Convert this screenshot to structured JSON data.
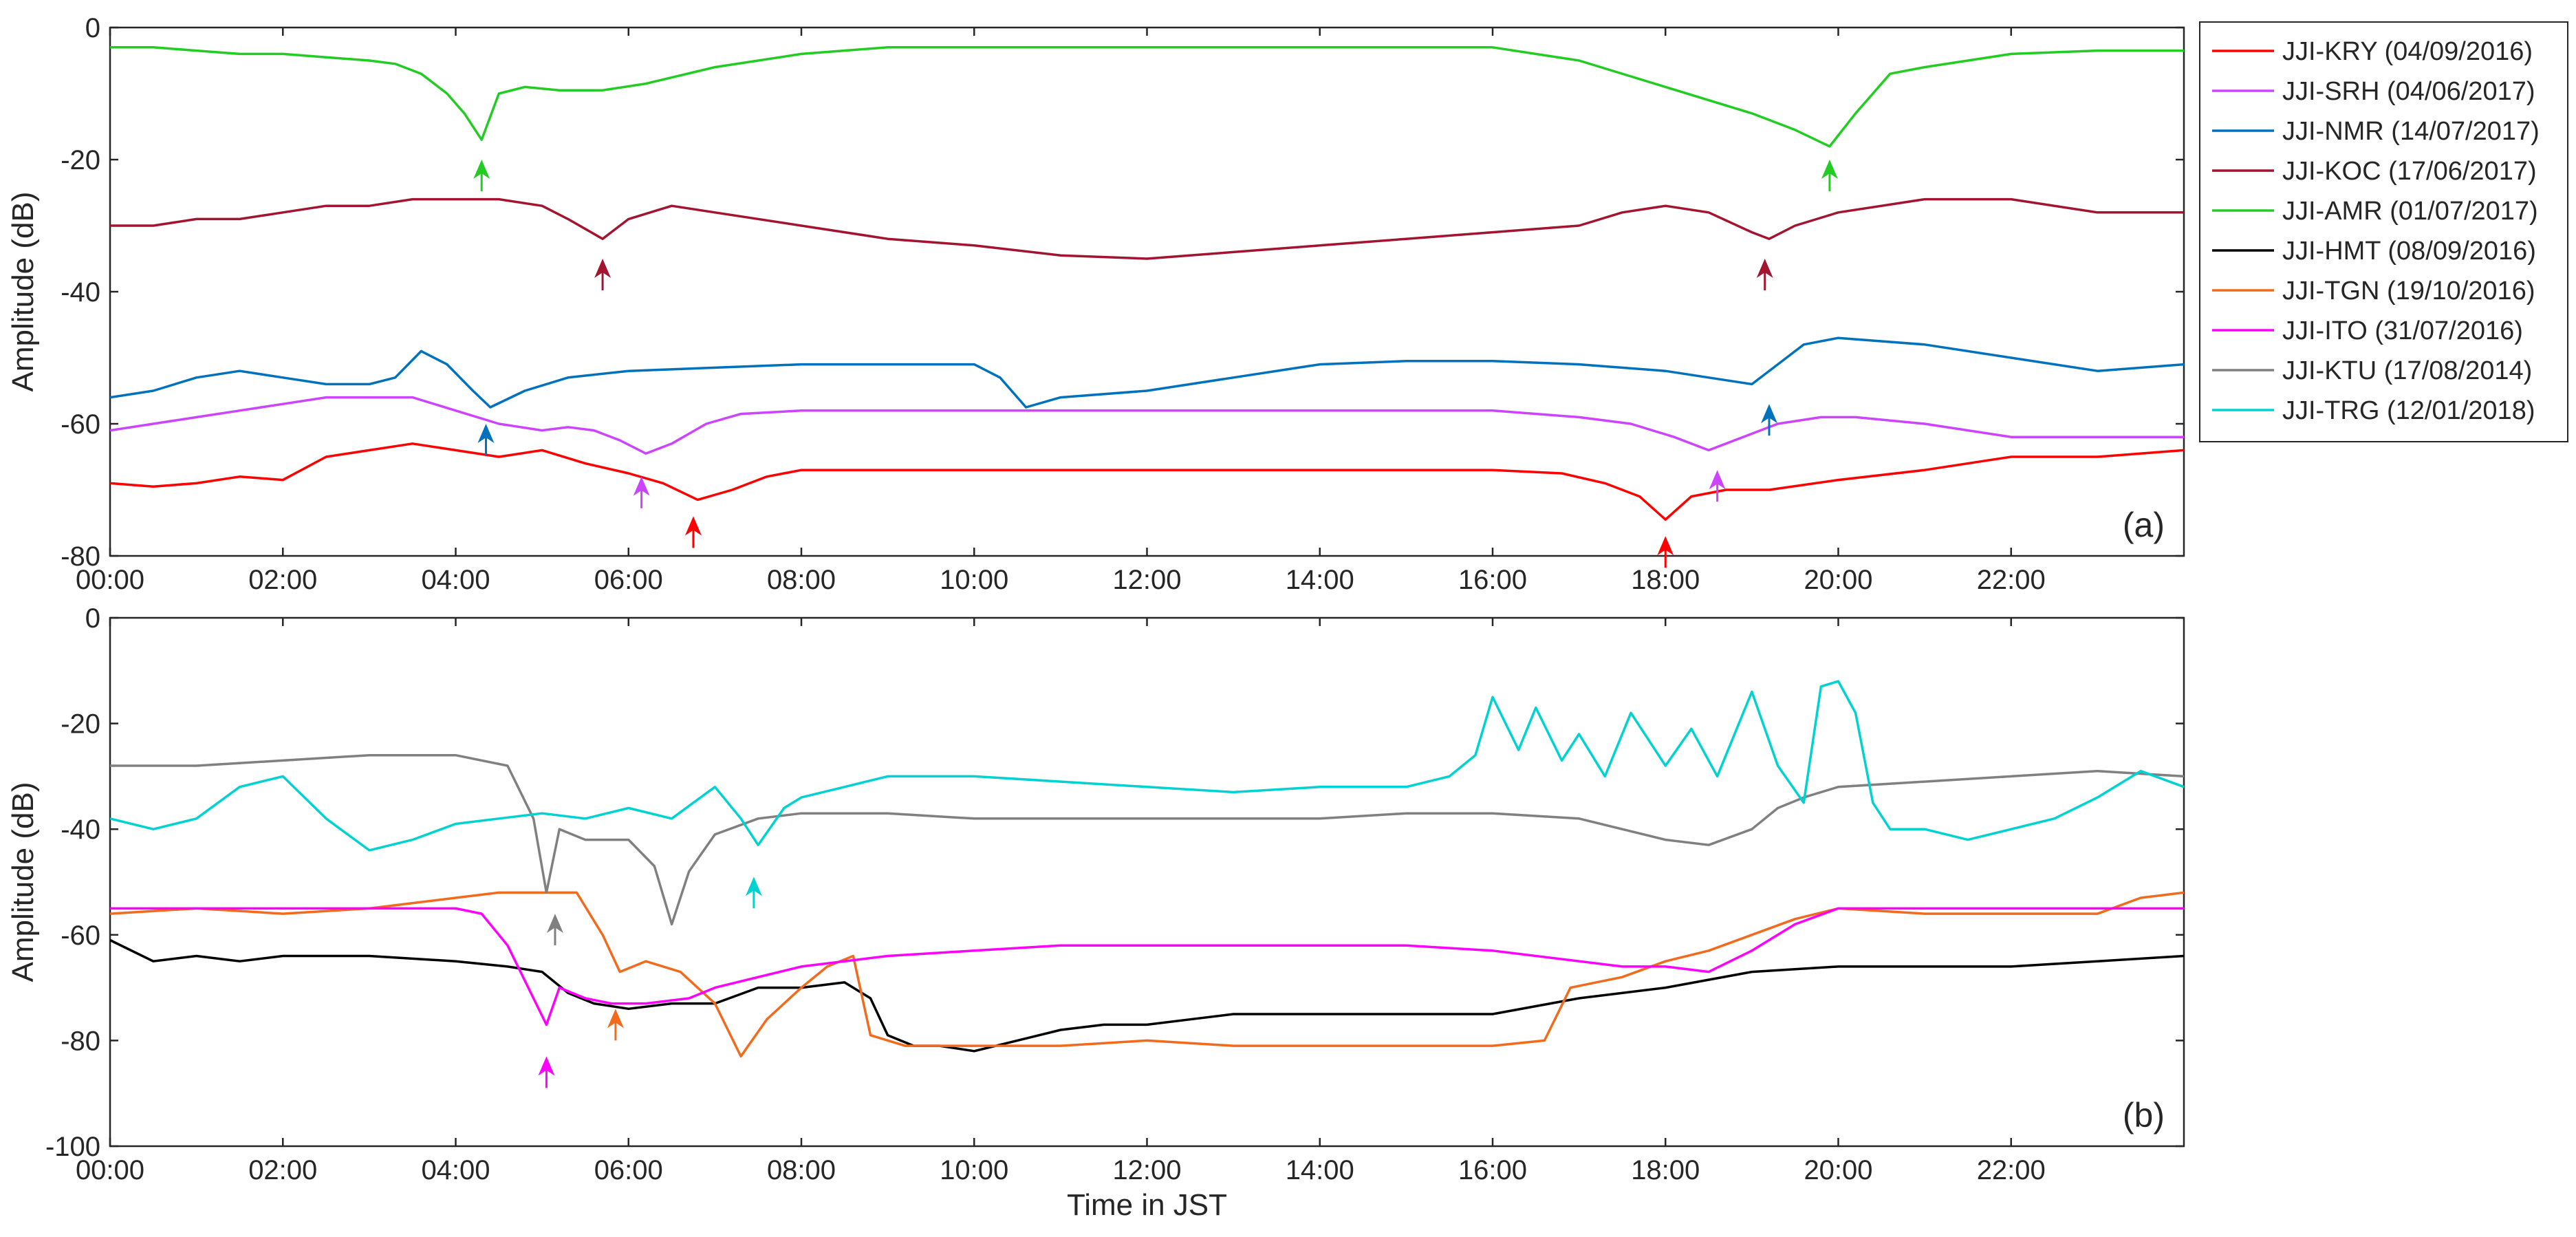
{
  "chart_data": [
    {
      "type": "line",
      "panel_label": "(a)",
      "xlabel": "",
      "ylabel": "Amplitude (dB)",
      "xlim": [
        0,
        24
      ],
      "ylim": [
        -80,
        0
      ],
      "x_ticks": [
        "00:00",
        "02:00",
        "04:00",
        "06:00",
        "08:00",
        "10:00",
        "12:00",
        "14:00",
        "16:00",
        "18:00",
        "20:00",
        "22:00"
      ],
      "y_ticks": [
        "0",
        "-20",
        "-40",
        "-60",
        "-80"
      ],
      "series": [
        {
          "name": "JJI-KRY (04/09/2016)",
          "color": "#ff0000",
          "x": [
            0,
            0.5,
            1,
            1.5,
            2,
            2.5,
            3,
            3.5,
            4,
            4.5,
            5,
            5.5,
            6,
            6.4,
            6.8,
            7.2,
            7.6,
            8,
            9,
            10,
            11,
            12,
            13,
            14,
            15,
            16,
            16.8,
            17.3,
            17.7,
            18,
            18.3,
            18.7,
            19.2,
            20,
            21,
            22,
            23,
            24
          ],
          "y": [
            -69,
            -69.5,
            -69,
            -68,
            -68.5,
            -65,
            -64,
            -63,
            -64,
            -65,
            -64,
            -66,
            -67.5,
            -69,
            -71.5,
            -70,
            -68,
            -67,
            -67,
            -67,
            -67,
            -67,
            -67,
            -67,
            -67,
            -67,
            -67.5,
            -69,
            -71,
            -74.5,
            -71,
            -70,
            -70,
            -68.5,
            -67,
            -65,
            -65,
            -64
          ]
        },
        {
          "name": "JJI-SRH (04/06/2017)",
          "color": "#cc44ff",
          "x": [
            0,
            0.5,
            1,
            1.5,
            2,
            2.5,
            3,
            3.5,
            4,
            4.5,
            5,
            5.3,
            5.6,
            5.9,
            6.2,
            6.5,
            6.9,
            7.3,
            8,
            9,
            10,
            11,
            12,
            13,
            14,
            15,
            16,
            17,
            17.6,
            18.1,
            18.5,
            18.9,
            19.3,
            19.8,
            20.2,
            21,
            22,
            23,
            24
          ],
          "y": [
            -61,
            -60,
            -59,
            -58,
            -57,
            -56,
            -56,
            -56,
            -58,
            -60,
            -61,
            -60.5,
            -61,
            -62.5,
            -64.5,
            -63,
            -60,
            -58.5,
            -58,
            -58,
            -58,
            -58,
            -58,
            -58,
            -58,
            -58,
            -58,
            -59,
            -60,
            -62,
            -64,
            -62,
            -60,
            -59,
            -59,
            -60,
            -62,
            -62,
            -62
          ]
        },
        {
          "name": "JJI-NMR (14/07/2017)",
          "color": "#0072bd",
          "x": [
            0,
            0.5,
            1,
            1.5,
            2,
            2.5,
            3,
            3.3,
            3.6,
            3.9,
            4.2,
            4.4,
            4.8,
            5.3,
            6,
            7,
            8,
            9,
            10,
            10.3,
            10.6,
            11,
            12,
            13,
            14,
            15,
            16,
            17,
            18,
            18.5,
            19,
            19.3,
            19.6,
            20,
            21,
            22,
            23,
            24
          ],
          "y": [
            -56,
            -55,
            -53,
            -52,
            -53,
            -54,
            -54,
            -53,
            -49,
            -51,
            -55,
            -57.5,
            -55,
            -53,
            -52,
            -51.5,
            -51,
            -51,
            -51,
            -53,
            -57.5,
            -56,
            -55,
            -53,
            -51,
            -50.5,
            -50.5,
            -51,
            -52,
            -53,
            -54,
            -51,
            -48,
            -47,
            -48,
            -50,
            -52,
            -51
          ]
        },
        {
          "name": "JJI-KOC (17/06/2017)",
          "color": "#a2142f",
          "x": [
            0,
            0.5,
            1,
            1.5,
            2,
            2.5,
            3,
            3.5,
            4,
            4.5,
            5,
            5.3,
            5.7,
            6,
            6.5,
            7,
            8,
            9,
            10,
            11,
            12,
            13,
            14,
            15,
            16,
            17,
            17.5,
            18,
            18.5,
            19,
            19.2,
            19.5,
            20,
            21,
            22,
            23,
            24
          ],
          "y": [
            -30,
            -30,
            -29,
            -29,
            -28,
            -27,
            -27,
            -26,
            -26,
            -26,
            -27,
            -29,
            -32,
            -29,
            -27,
            -28,
            -30,
            -32,
            -33,
            -34.5,
            -35,
            -34,
            -33,
            -32,
            -31,
            -30,
            -28,
            -27,
            -28,
            -31,
            -32,
            -30,
            -28,
            -26,
            -26,
            -28,
            -28
          ]
        },
        {
          "name": "JJI-AMR (01/07/2017)",
          "color": "#22cc22",
          "x": [
            0,
            0.5,
            1,
            1.5,
            2,
            2.5,
            3,
            3.3,
            3.6,
            3.9,
            4.1,
            4.3,
            4.5,
            4.8,
            5.2,
            5.7,
            6.2,
            7,
            8,
            9,
            10,
            11,
            12,
            13,
            14,
            15,
            16,
            17,
            18,
            19,
            19.5,
            19.9,
            20.2,
            20.4,
            20.6,
            21,
            22,
            23,
            24
          ],
          "y": [
            -3,
            -3,
            -3.5,
            -4,
            -4,
            -4.5,
            -5,
            -5.5,
            -7,
            -10,
            -13,
            -17,
            -10,
            -9,
            -9.5,
            -9.5,
            -8.5,
            -6,
            -4,
            -3,
            -3,
            -3,
            -3,
            -3,
            -3,
            -3,
            -3,
            -5,
            -9,
            -13,
            -15.5,
            -18,
            -13,
            -10,
            -7,
            -6,
            -4,
            -3.5,
            -3.5
          ]
        }
      ],
      "arrows": [
        {
          "x": 6.75,
          "y": -74,
          "color": "#ff0000"
        },
        {
          "x": 18.0,
          "y": -77,
          "color": "#ff0000"
        },
        {
          "x": 6.15,
          "y": -68,
          "color": "#cc44ff"
        },
        {
          "x": 18.6,
          "y": -67,
          "color": "#cc44ff"
        },
        {
          "x": 4.35,
          "y": -60,
          "color": "#0072bd"
        },
        {
          "x": 19.2,
          "y": -57,
          "color": "#0072bd"
        },
        {
          "x": 5.7,
          "y": -35,
          "color": "#a2142f"
        },
        {
          "x": 19.15,
          "y": -35,
          "color": "#a2142f"
        },
        {
          "x": 4.3,
          "y": -20,
          "color": "#22cc22"
        },
        {
          "x": 19.9,
          "y": -20,
          "color": "#22cc22"
        }
      ]
    },
    {
      "type": "line",
      "panel_label": "(b)",
      "xlabel": "Time in JST",
      "ylabel": "Amplitude (dB)",
      "xlim": [
        0,
        24
      ],
      "ylim": [
        -100,
        0
      ],
      "x_ticks": [
        "00:00",
        "02:00",
        "04:00",
        "06:00",
        "08:00",
        "10:00",
        "12:00",
        "14:00",
        "16:00",
        "18:00",
        "20:00",
        "22:00"
      ],
      "y_ticks": [
        "0",
        "-20",
        "-40",
        "-60",
        "-80",
        "-100"
      ],
      "series": [
        {
          "name": "JJI-HMT (08/09/2016)",
          "color": "#000000",
          "x": [
            0,
            0.5,
            1,
            1.5,
            2,
            3,
            4,
            4.6,
            5,
            5.3,
            5.6,
            6,
            6.5,
            7,
            7.5,
            8,
            8.5,
            8.8,
            9,
            9.3,
            9.6,
            10,
            10.5,
            11,
            11.5,
            12,
            12.5,
            13,
            14,
            15,
            16,
            17,
            18,
            19,
            20,
            21,
            22,
            23,
            24
          ],
          "y": [
            -61,
            -65,
            -64,
            -65,
            -64,
            -64,
            -65,
            -66,
            -67,
            -71,
            -73,
            -74,
            -73,
            -73,
            -70,
            -70,
            -69,
            -72,
            -79,
            -81,
            -81,
            -82,
            -80,
            -78,
            -77,
            -77,
            -76,
            -75,
            -75,
            -75,
            -75,
            -72,
            -70,
            -67,
            -66,
            -66,
            -66,
            -65,
            -64
          ]
        },
        {
          "name": "JJI-TGN (19/10/2016)",
          "color": "#f26b1d",
          "x": [
            0,
            1,
            2,
            3,
            4,
            4.5,
            5,
            5.4,
            5.7,
            5.9,
            6.2,
            6.6,
            7,
            7.3,
            7.6,
            8,
            8.3,
            8.6,
            8.8,
            9.2,
            10,
            11,
            12,
            13,
            14,
            15,
            16,
            16.6,
            16.9,
            17.5,
            18,
            18.5,
            19,
            19.5,
            20,
            21,
            22,
            23,
            23.5,
            24
          ],
          "y": [
            -56,
            -55,
            -56,
            -55,
            -53,
            -52,
            -52,
            -52,
            -60,
            -67,
            -65,
            -67,
            -73,
            -83,
            -76,
            -70,
            -66,
            -64,
            -79,
            -81,
            -81,
            -81,
            -80,
            -81,
            -81,
            -81,
            -81,
            -80,
            -70,
            -68,
            -65,
            -63,
            -60,
            -57,
            -55,
            -56,
            -56,
            -56,
            -53,
            -52
          ]
        },
        {
          "name": "JJI-ITO (31/07/2016)",
          "color": "#ff00ff",
          "x": [
            0,
            1,
            2,
            3,
            4,
            4.3,
            4.6,
            4.9,
            5.05,
            5.2,
            5.5,
            5.8,
            6.2,
            6.7,
            7,
            7.5,
            8,
            9,
            10,
            11,
            12,
            13,
            14,
            15,
            16,
            17,
            17.5,
            18,
            18.5,
            19,
            19.5,
            20,
            21,
            22,
            23,
            24
          ],
          "y": [
            -55,
            -55,
            -55,
            -55,
            -55,
            -56,
            -62,
            -72,
            -77,
            -70,
            -72,
            -73,
            -73,
            -72,
            -70,
            -68,
            -66,
            -64,
            -63,
            -62,
            -62,
            -62,
            -62,
            -62,
            -63,
            -65,
            -66,
            -66,
            -67,
            -63,
            -58,
            -55,
            -55,
            -55,
            -55,
            -55
          ]
        },
        {
          "name": "JJI-KTU (17/08/2014)",
          "color": "#808080",
          "x": [
            0,
            1,
            2,
            3,
            4,
            4.6,
            4.9,
            5.05,
            5.2,
            5.5,
            6,
            6.3,
            6.5,
            6.7,
            7,
            7.5,
            8,
            9,
            10,
            11,
            12,
            13,
            14,
            15,
            16,
            17,
            18,
            18.5,
            19,
            19.3,
            19.6,
            20,
            21,
            22,
            23,
            24
          ],
          "y": [
            -28,
            -28,
            -27,
            -26,
            -26,
            -28,
            -38,
            -52,
            -40,
            -42,
            -42,
            -47,
            -58,
            -48,
            -41,
            -38,
            -37,
            -37,
            -38,
            -38,
            -38,
            -38,
            -38,
            -37,
            -37,
            -38,
            -42,
            -43,
            -40,
            -36,
            -34,
            -32,
            -31,
            -30,
            -29,
            -30
          ]
        },
        {
          "name": "JJI-TRG (12/01/2018)",
          "color": "#00d2d2",
          "x": [
            0,
            0.5,
            1,
            1.5,
            2,
            2.5,
            3,
            3.5,
            4,
            4.5,
            5,
            5.5,
            6,
            6.5,
            7,
            7.3,
            7.5,
            7.8,
            8,
            8.5,
            9,
            10,
            11,
            12,
            13,
            14,
            15,
            15.5,
            15.8,
            16,
            16.3,
            16.5,
            16.8,
            17,
            17.3,
            17.6,
            18,
            18.3,
            18.6,
            19,
            19.3,
            19.6,
            19.8,
            20,
            20.2,
            20.4,
            20.6,
            21,
            21.5,
            22,
            22.5,
            23,
            23.5,
            24
          ],
          "y": [
            -38,
            -40,
            -38,
            -32,
            -30,
            -38,
            -44,
            -42,
            -39,
            -38,
            -37,
            -38,
            -36,
            -38,
            -32,
            -38,
            -43,
            -36,
            -34,
            -32,
            -30,
            -30,
            -31,
            -32,
            -33,
            -32,
            -32,
            -30,
            -26,
            -15,
            -25,
            -17,
            -27,
            -22,
            -30,
            -18,
            -28,
            -21,
            -30,
            -14,
            -28,
            -35,
            -13,
            -12,
            -18,
            -35,
            -40,
            -40,
            -42,
            -40,
            -38,
            -34,
            -29,
            -32
          ]
        }
      ],
      "arrows": [
        {
          "x": 5.05,
          "y": -83,
          "color": "#ff00ff"
        },
        {
          "x": 5.85,
          "y": -74,
          "color": "#f26b1d"
        },
        {
          "x": 5.15,
          "y": -56,
          "color": "#808080"
        },
        {
          "x": 7.45,
          "y": -49,
          "color": "#00d2d2"
        }
      ]
    }
  ],
  "legend": [
    {
      "label": "JJI-KRY (04/09/2016)",
      "color": "#ff0000"
    },
    {
      "label": "JJI-SRH (04/06/2017)",
      "color": "#cc44ff"
    },
    {
      "label": "JJI-NMR (14/07/2017)",
      "color": "#0072bd"
    },
    {
      "label": "JJI-KOC (17/06/2017)",
      "color": "#a2142f"
    },
    {
      "label": "JJI-AMR (01/07/2017)",
      "color": "#22cc22"
    },
    {
      "label": "JJI-HMT (08/09/2016)",
      "color": "#000000"
    },
    {
      "label": "JJI-TGN (19/10/2016)",
      "color": "#f26b1d"
    },
    {
      "label": "JJI-ITO (31/07/2016)",
      "color": "#ff00ff"
    },
    {
      "label": "JJI-KTU (17/08/2014)",
      "color": "#808080"
    },
    {
      "label": "JJI-TRG (12/01/2018)",
      "color": "#00d2d2"
    }
  ]
}
